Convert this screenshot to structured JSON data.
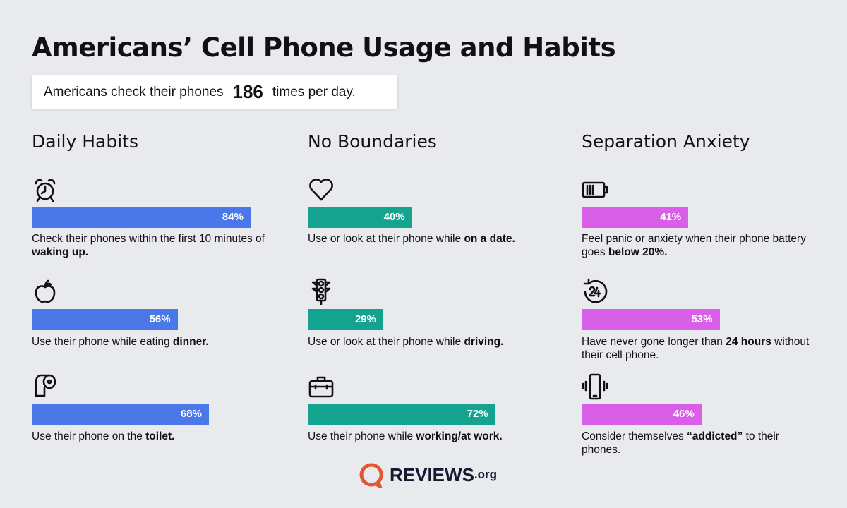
{
  "title": "Americans’ Cell Phone Usage and Habits",
  "callout": {
    "prefix": "Americans check their phones",
    "number": "186",
    "suffix": "times per day."
  },
  "colors": {
    "daily": "#4a78e8",
    "boundaries": "#14a38f",
    "anxiety": "#d95ee8",
    "background": "#e9eaee"
  },
  "chart_data": [
    {
      "type": "bar",
      "orientation": "horizontal",
      "title": "Daily Habits",
      "xlim": [
        0,
        100
      ],
      "items": [
        {
          "icon": "alarm-clock-icon",
          "value": 84,
          "label": "84%",
          "text": "Check their phones within the first 10 minutes of ",
          "bold": "waking up.",
          "after": ""
        },
        {
          "icon": "apple-icon",
          "value": 56,
          "label": "56%",
          "text": "Use their phone while eating ",
          "bold": "dinner.",
          "after": ""
        },
        {
          "icon": "toilet-paper-icon",
          "value": 68,
          "label": "68%",
          "text": "Use their phone on the ",
          "bold": "toilet.",
          "after": ""
        }
      ]
    },
    {
      "type": "bar",
      "orientation": "horizontal",
      "title": "No Boundaries",
      "xlim": [
        0,
        100
      ],
      "items": [
        {
          "icon": "heart-icon",
          "value": 40,
          "label": "40%",
          "text": "Use or look at their phone while ",
          "bold": "on a date.",
          "after": ""
        },
        {
          "icon": "traffic-light-icon",
          "value": 29,
          "label": "29%",
          "text": "Use or look at their phone while ",
          "bold": "driving.",
          "after": ""
        },
        {
          "icon": "briefcase-icon",
          "value": 72,
          "label": "72%",
          "text": "Use their phone while ",
          "bold": "working/at work.",
          "after": ""
        }
      ]
    },
    {
      "type": "bar",
      "orientation": "horizontal",
      "title": "Separation Anxiety",
      "xlim": [
        0,
        100
      ],
      "items": [
        {
          "icon": "low-battery-icon",
          "value": 41,
          "label": "41%",
          "text": "Feel panic or anxiety when their phone battery goes ",
          "bold": "below 20%.",
          "after": ""
        },
        {
          "icon": "24-hours-icon",
          "value": 53,
          "label": "53%",
          "text": "Have never gone longer than ",
          "bold": "24 hours",
          "after": " without their cell phone."
        },
        {
          "icon": "vibrating-phone-icon",
          "value": 46,
          "label": "46%",
          "text": "Consider themselves ",
          "bold": "“addicted”",
          "after": " to their phones."
        }
      ]
    }
  ],
  "logo": {
    "word": "REVIEWS",
    "tld": ".org"
  }
}
